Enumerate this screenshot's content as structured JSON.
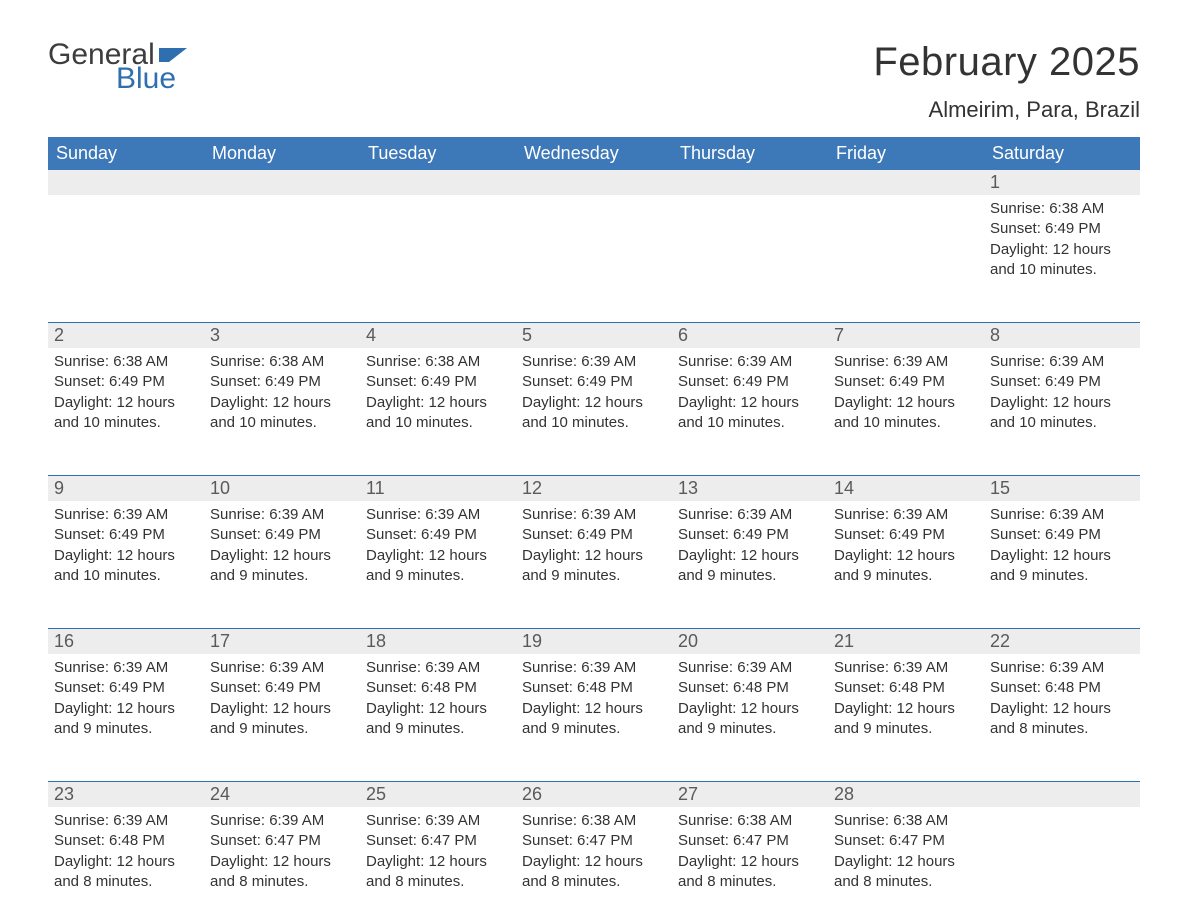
{
  "logo": {
    "text1": "General",
    "text2": "Blue",
    "flag_color": "#2f6fb0"
  },
  "title": "February 2025",
  "location": "Almeirim, Para, Brazil",
  "colors": {
    "header_bg": "#3d78b8",
    "header_text": "#ffffff",
    "daynum_bg": "#ededed",
    "week_divider": "#2f6fb0",
    "body_text": "#333333",
    "background": "#ffffff"
  },
  "weekdays": [
    "Sunday",
    "Monday",
    "Tuesday",
    "Wednesday",
    "Thursday",
    "Friday",
    "Saturday"
  ],
  "weeks": [
    [
      {
        "day": "",
        "sunrise": "",
        "sunset": "",
        "daylight": ""
      },
      {
        "day": "",
        "sunrise": "",
        "sunset": "",
        "daylight": ""
      },
      {
        "day": "",
        "sunrise": "",
        "sunset": "",
        "daylight": ""
      },
      {
        "day": "",
        "sunrise": "",
        "sunset": "",
        "daylight": ""
      },
      {
        "day": "",
        "sunrise": "",
        "sunset": "",
        "daylight": ""
      },
      {
        "day": "",
        "sunrise": "",
        "sunset": "",
        "daylight": ""
      },
      {
        "day": "1",
        "sunrise": "Sunrise: 6:38 AM",
        "sunset": "Sunset: 6:49 PM",
        "daylight": "Daylight: 12 hours and 10 minutes."
      }
    ],
    [
      {
        "day": "2",
        "sunrise": "Sunrise: 6:38 AM",
        "sunset": "Sunset: 6:49 PM",
        "daylight": "Daylight: 12 hours and 10 minutes."
      },
      {
        "day": "3",
        "sunrise": "Sunrise: 6:38 AM",
        "sunset": "Sunset: 6:49 PM",
        "daylight": "Daylight: 12 hours and 10 minutes."
      },
      {
        "day": "4",
        "sunrise": "Sunrise: 6:38 AM",
        "sunset": "Sunset: 6:49 PM",
        "daylight": "Daylight: 12 hours and 10 minutes."
      },
      {
        "day": "5",
        "sunrise": "Sunrise: 6:39 AM",
        "sunset": "Sunset: 6:49 PM",
        "daylight": "Daylight: 12 hours and 10 minutes."
      },
      {
        "day": "6",
        "sunrise": "Sunrise: 6:39 AM",
        "sunset": "Sunset: 6:49 PM",
        "daylight": "Daylight: 12 hours and 10 minutes."
      },
      {
        "day": "7",
        "sunrise": "Sunrise: 6:39 AM",
        "sunset": "Sunset: 6:49 PM",
        "daylight": "Daylight: 12 hours and 10 minutes."
      },
      {
        "day": "8",
        "sunrise": "Sunrise: 6:39 AM",
        "sunset": "Sunset: 6:49 PM",
        "daylight": "Daylight: 12 hours and 10 minutes."
      }
    ],
    [
      {
        "day": "9",
        "sunrise": "Sunrise: 6:39 AM",
        "sunset": "Sunset: 6:49 PM",
        "daylight": "Daylight: 12 hours and 10 minutes."
      },
      {
        "day": "10",
        "sunrise": "Sunrise: 6:39 AM",
        "sunset": "Sunset: 6:49 PM",
        "daylight": "Daylight: 12 hours and 9 minutes."
      },
      {
        "day": "11",
        "sunrise": "Sunrise: 6:39 AM",
        "sunset": "Sunset: 6:49 PM",
        "daylight": "Daylight: 12 hours and 9 minutes."
      },
      {
        "day": "12",
        "sunrise": "Sunrise: 6:39 AM",
        "sunset": "Sunset: 6:49 PM",
        "daylight": "Daylight: 12 hours and 9 minutes."
      },
      {
        "day": "13",
        "sunrise": "Sunrise: 6:39 AM",
        "sunset": "Sunset: 6:49 PM",
        "daylight": "Daylight: 12 hours and 9 minutes."
      },
      {
        "day": "14",
        "sunrise": "Sunrise: 6:39 AM",
        "sunset": "Sunset: 6:49 PM",
        "daylight": "Daylight: 12 hours and 9 minutes."
      },
      {
        "day": "15",
        "sunrise": "Sunrise: 6:39 AM",
        "sunset": "Sunset: 6:49 PM",
        "daylight": "Daylight: 12 hours and 9 minutes."
      }
    ],
    [
      {
        "day": "16",
        "sunrise": "Sunrise: 6:39 AM",
        "sunset": "Sunset: 6:49 PM",
        "daylight": "Daylight: 12 hours and 9 minutes."
      },
      {
        "day": "17",
        "sunrise": "Sunrise: 6:39 AM",
        "sunset": "Sunset: 6:49 PM",
        "daylight": "Daylight: 12 hours and 9 minutes."
      },
      {
        "day": "18",
        "sunrise": "Sunrise: 6:39 AM",
        "sunset": "Sunset: 6:48 PM",
        "daylight": "Daylight: 12 hours and 9 minutes."
      },
      {
        "day": "19",
        "sunrise": "Sunrise: 6:39 AM",
        "sunset": "Sunset: 6:48 PM",
        "daylight": "Daylight: 12 hours and 9 minutes."
      },
      {
        "day": "20",
        "sunrise": "Sunrise: 6:39 AM",
        "sunset": "Sunset: 6:48 PM",
        "daylight": "Daylight: 12 hours and 9 minutes."
      },
      {
        "day": "21",
        "sunrise": "Sunrise: 6:39 AM",
        "sunset": "Sunset: 6:48 PM",
        "daylight": "Daylight: 12 hours and 9 minutes."
      },
      {
        "day": "22",
        "sunrise": "Sunrise: 6:39 AM",
        "sunset": "Sunset: 6:48 PM",
        "daylight": "Daylight: 12 hours and 8 minutes."
      }
    ],
    [
      {
        "day": "23",
        "sunrise": "Sunrise: 6:39 AM",
        "sunset": "Sunset: 6:48 PM",
        "daylight": "Daylight: 12 hours and 8 minutes."
      },
      {
        "day": "24",
        "sunrise": "Sunrise: 6:39 AM",
        "sunset": "Sunset: 6:47 PM",
        "daylight": "Daylight: 12 hours and 8 minutes."
      },
      {
        "day": "25",
        "sunrise": "Sunrise: 6:39 AM",
        "sunset": "Sunset: 6:47 PM",
        "daylight": "Daylight: 12 hours and 8 minutes."
      },
      {
        "day": "26",
        "sunrise": "Sunrise: 6:38 AM",
        "sunset": "Sunset: 6:47 PM",
        "daylight": "Daylight: 12 hours and 8 minutes."
      },
      {
        "day": "27",
        "sunrise": "Sunrise: 6:38 AM",
        "sunset": "Sunset: 6:47 PM",
        "daylight": "Daylight: 12 hours and 8 minutes."
      },
      {
        "day": "28",
        "sunrise": "Sunrise: 6:38 AM",
        "sunset": "Sunset: 6:47 PM",
        "daylight": "Daylight: 12 hours and 8 minutes."
      },
      {
        "day": "",
        "sunrise": "",
        "sunset": "",
        "daylight": ""
      }
    ]
  ]
}
